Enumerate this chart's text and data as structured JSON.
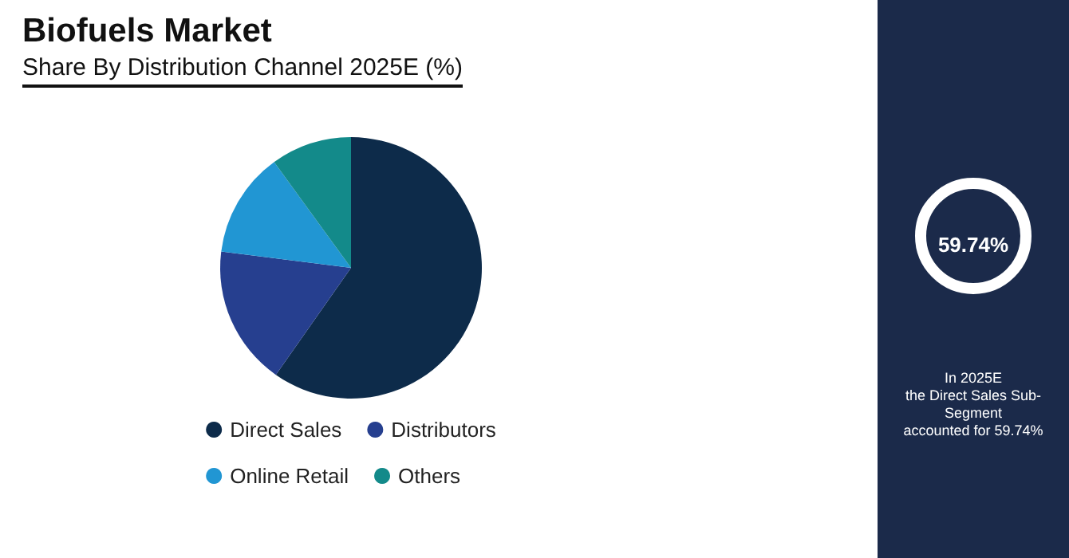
{
  "chart_data": [
    {
      "type": "pie",
      "title": "Biofuels Market",
      "subtitle": "Share By Distribution Channel 2025E (%)",
      "categories": [
        "Direct Sales",
        "Distributors",
        "Online Retail",
        "Others"
      ],
      "values": [
        59.74,
        17.26,
        13,
        10
      ],
      "colors": [
        "#0d2b4a",
        "#263f8f",
        "#2196d3",
        "#138a8a"
      ],
      "legend": "bottom"
    },
    {
      "type": "other",
      "annotations": [
        "59.74%",
        "In 2025E\nthe Direct Sales Sub-Segment\naccounted for 59.74%"
      ]
    }
  ]
}
